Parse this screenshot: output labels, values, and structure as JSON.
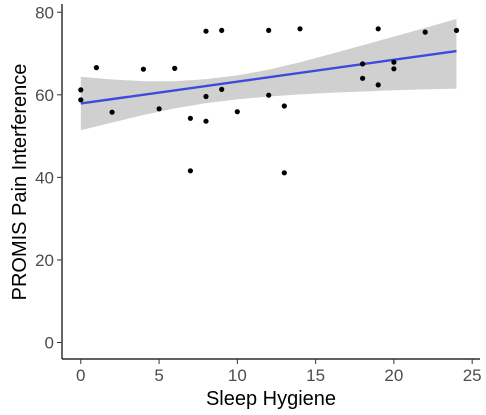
{
  "chart_data": {
    "type": "scatter",
    "title": "",
    "xlabel": "Sleep Hygiene",
    "ylabel": "PROMIS Pain Interference",
    "xlim": [
      -1.2,
      25.5
    ],
    "ylim": [
      -4,
      82
    ],
    "x_ticks": [
      0,
      5,
      10,
      15,
      20,
      25
    ],
    "y_ticks": [
      0,
      20,
      40,
      60,
      80
    ],
    "x_tick_labels": [
      "0",
      "5",
      "10",
      "15",
      "20",
      "25"
    ],
    "y_tick_labels": [
      "0",
      "20",
      "40",
      "60",
      "80"
    ],
    "grid": false,
    "points": [
      {
        "x": 0,
        "y": 61.2
      },
      {
        "x": 0,
        "y": 58.8
      },
      {
        "x": 1,
        "y": 66.6
      },
      {
        "x": 2,
        "y": 55.8
      },
      {
        "x": 4,
        "y": 66.2
      },
      {
        "x": 5,
        "y": 56.6
      },
      {
        "x": 6,
        "y": 66.4
      },
      {
        "x": 7,
        "y": 54.3
      },
      {
        "x": 7,
        "y": 41.6
      },
      {
        "x": 8,
        "y": 75.4
      },
      {
        "x": 8,
        "y": 59.6
      },
      {
        "x": 8,
        "y": 53.6
      },
      {
        "x": 9,
        "y": 75.6
      },
      {
        "x": 9,
        "y": 61.3
      },
      {
        "x": 10,
        "y": 55.9
      },
      {
        "x": 12,
        "y": 75.6
      },
      {
        "x": 12,
        "y": 59.9
      },
      {
        "x": 13,
        "y": 57.3
      },
      {
        "x": 13,
        "y": 41.1
      },
      {
        "x": 14,
        "y": 76.0
      },
      {
        "x": 18,
        "y": 67.5
      },
      {
        "x": 18,
        "y": 64.0
      },
      {
        "x": 19,
        "y": 76.0
      },
      {
        "x": 19,
        "y": 62.4
      },
      {
        "x": 20,
        "y": 67.9
      },
      {
        "x": 20,
        "y": 66.3
      },
      {
        "x": 22,
        "y": 75.2
      },
      {
        "x": 24,
        "y": 75.6
      }
    ],
    "fit_line": {
      "x": [
        0,
        24
      ],
      "y": [
        57.9,
        70.6
      ],
      "color": "#3c4bdc"
    },
    "confidence_band": {
      "x": [
        0,
        2,
        4,
        6,
        8,
        10,
        12,
        14,
        16,
        18,
        20,
        22,
        24
      ],
      "upper": [
        64.4,
        63.7,
        63.3,
        63.3,
        63.8,
        64.7,
        66.1,
        67.9,
        69.9,
        72.0,
        74.1,
        76.2,
        78.4
      ],
      "lower": [
        51.4,
        53.3,
        55.1,
        56.7,
        58.0,
        58.9,
        59.6,
        60.1,
        60.5,
        60.8,
        61.1,
        61.3,
        61.5
      ],
      "color": "#d0d0d0"
    },
    "point_color": "#000000"
  }
}
